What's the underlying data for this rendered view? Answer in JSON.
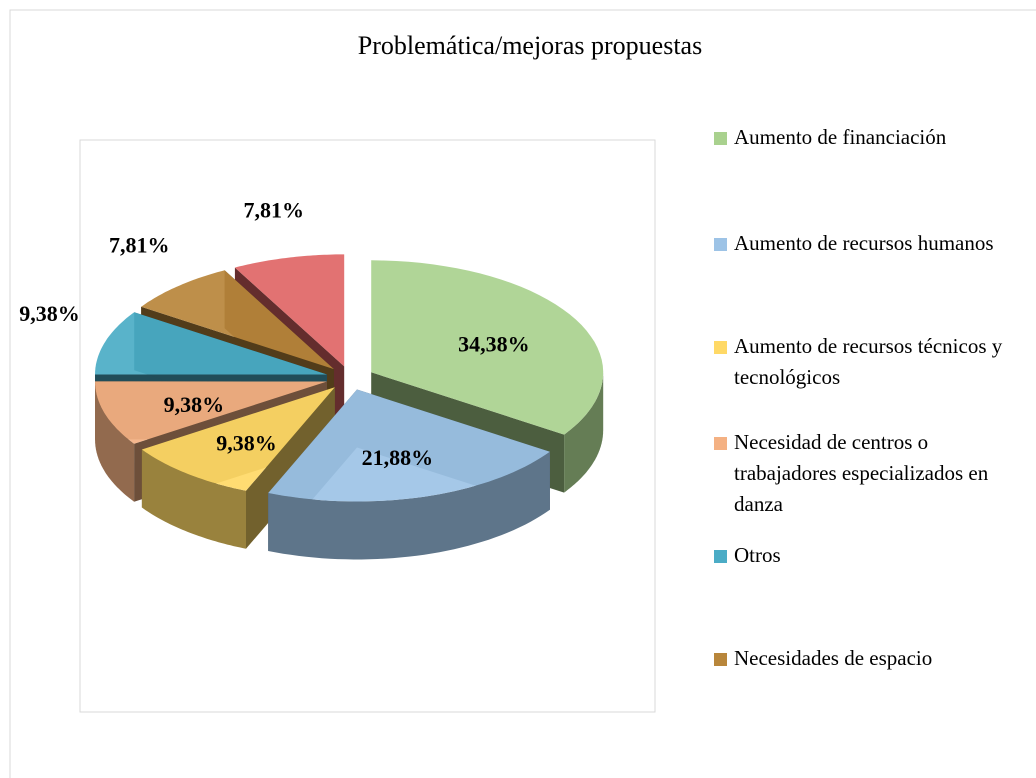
{
  "chart_data": {
    "type": "pie3d",
    "title": "Problemática/mejoras propuestas",
    "categories": [
      "Aumento de financiación",
      "Aumento de recursos humanos",
      "Aumento de recursos técnicos y tecnológicos",
      "Necesidad de centros o trabajadores especializados en danza",
      "Otros",
      "Necesidades de espacio",
      null
    ],
    "values": [
      34.38,
      21.88,
      9.38,
      9.38,
      9.38,
      7.81,
      7.81
    ],
    "value_labels": [
      "34,38%",
      "21,88%",
      "9,38%",
      "9,38%",
      "9,38%",
      "7,81%",
      "7,81%"
    ],
    "colors": [
      "#a9d18e",
      "#9dc3e6",
      "#ffd966",
      "#f4b183",
      "#4bacc6",
      "#b8863b",
      "#e06666"
    ],
    "legend": "right"
  }
}
